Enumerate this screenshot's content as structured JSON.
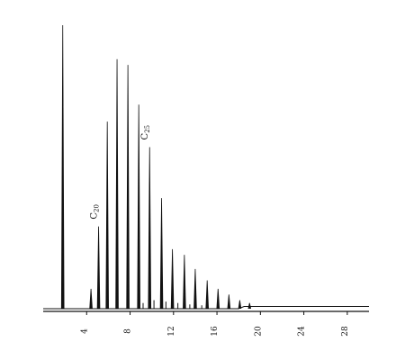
{
  "chart_data": {
    "type": "line",
    "title": "",
    "xlabel": "",
    "ylabel": "",
    "xlim": [
      0,
      30
    ],
    "ylim": [
      0,
      1
    ],
    "grid": false,
    "legend": "none",
    "x_ticks": [
      4,
      8,
      12,
      16,
      20,
      24,
      28
    ],
    "x_tick_labels": [
      "4",
      "8",
      "12",
      "16",
      "20",
      "24",
      "28"
    ],
    "peaks": [
      {
        "x": 1.8,
        "y": 1.0
      },
      {
        "x": 4.4,
        "y": 0.07
      },
      {
        "x": 5.1,
        "y": 0.29
      },
      {
        "x": 5.9,
        "y": 0.66
      },
      {
        "x": 6.8,
        "y": 0.88
      },
      {
        "x": 7.8,
        "y": 0.86
      },
      {
        "x": 8.8,
        "y": 0.72
      },
      {
        "x": 9.8,
        "y": 0.57
      },
      {
        "x": 10.9,
        "y": 0.39
      },
      {
        "x": 11.9,
        "y": 0.21
      },
      {
        "x": 13.0,
        "y": 0.19
      },
      {
        "x": 14.0,
        "y": 0.14
      },
      {
        "x": 15.1,
        "y": 0.1
      },
      {
        "x": 16.1,
        "y": 0.07
      },
      {
        "x": 17.1,
        "y": 0.05
      },
      {
        "x": 18.1,
        "y": 0.03
      },
      {
        "x": 19.0,
        "y": 0.02
      }
    ],
    "minor_peaks": [
      {
        "x": 9.2,
        "y": 0.02
      },
      {
        "x": 10.2,
        "y": 0.03
      },
      {
        "x": 11.3,
        "y": 0.025
      },
      {
        "x": 12.4,
        "y": 0.02
      },
      {
        "x": 13.5,
        "y": 0.015
      },
      {
        "x": 14.6,
        "y": 0.012
      }
    ],
    "annotations": [
      {
        "text_main": "C",
        "text_sub": "20",
        "x": 5.1,
        "y": 0.29
      },
      {
        "text_main": "C",
        "text_sub": "25",
        "x": 9.8,
        "y": 0.57
      }
    ]
  }
}
